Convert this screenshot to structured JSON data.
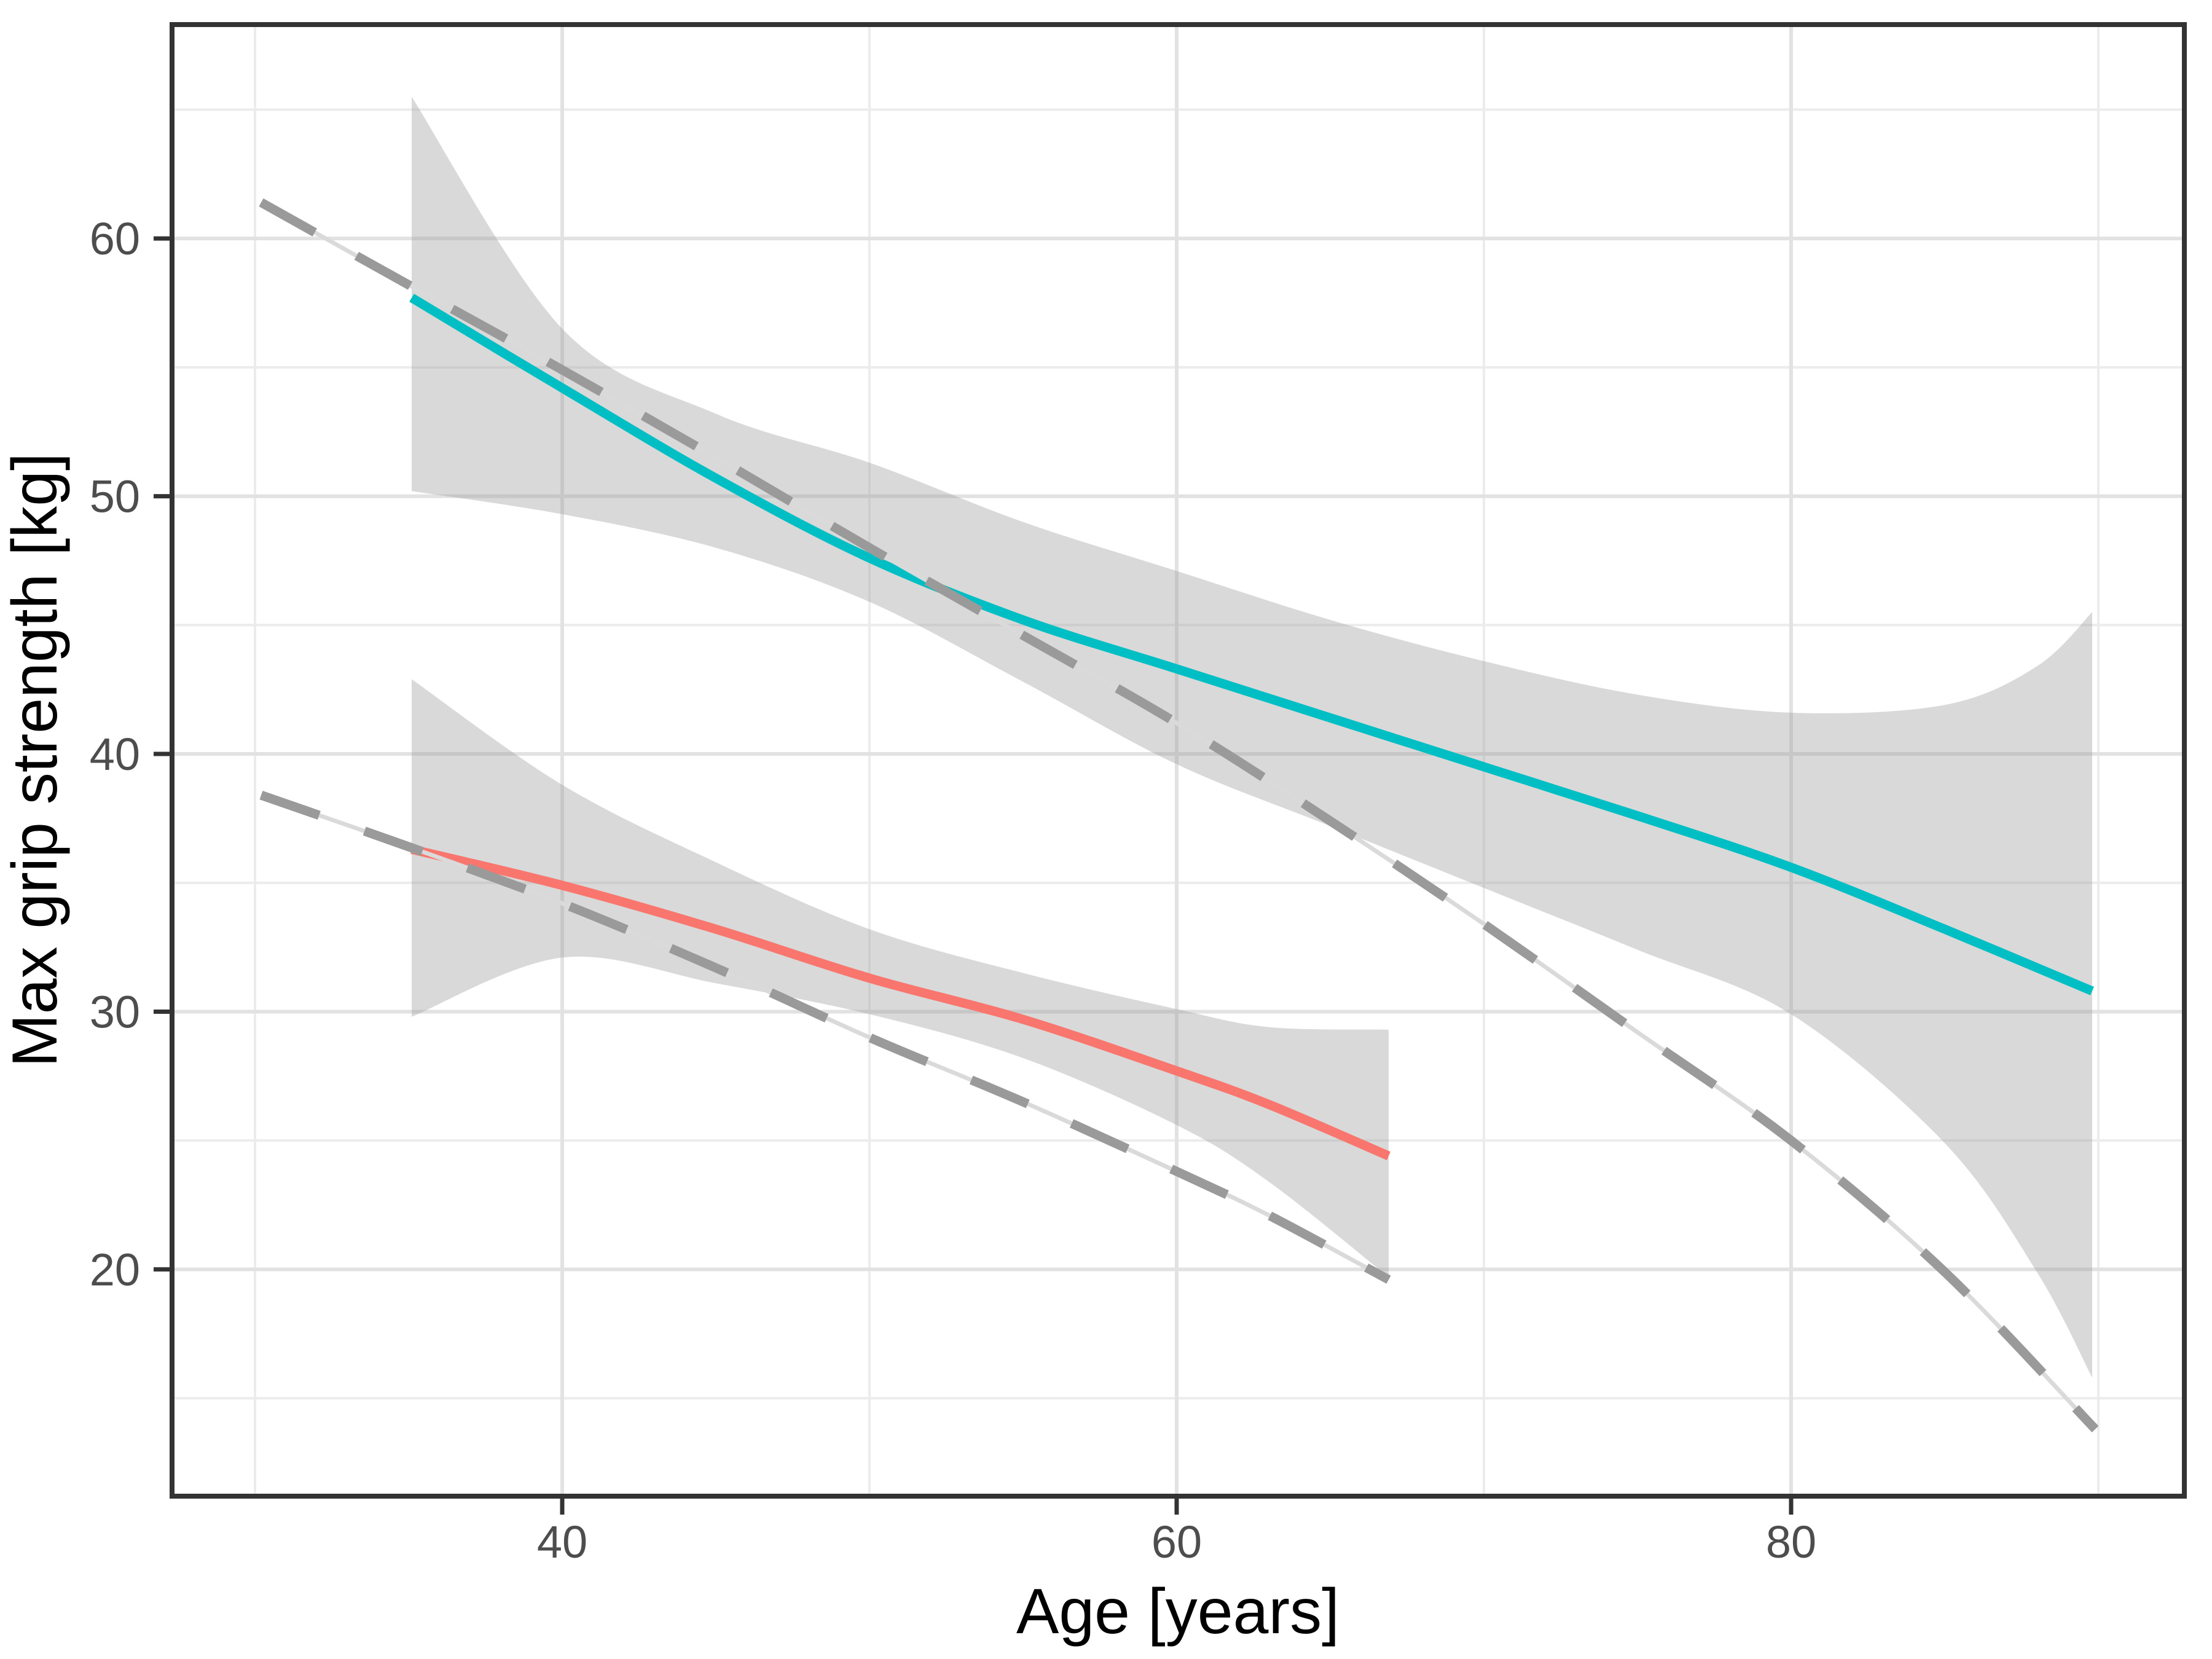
{
  "chart_data": {
    "type": "line",
    "title": "",
    "xlabel": "Age [years]",
    "ylabel": "Max grip strength [kg]",
    "xlim": [
      27.3,
      92.8
    ],
    "ylim": [
      11.2,
      68.3
    ],
    "x_ticks": [
      40,
      60,
      80
    ],
    "y_ticks": [
      60,
      50,
      40,
      30,
      20
    ],
    "x_minor_ticks": [
      30,
      50,
      70,
      90
    ],
    "y_minor_ticks": [
      65,
      55,
      45,
      35,
      25,
      15
    ],
    "grid": true,
    "legend_position": "none",
    "series": [
      {
        "name": "smooth-upper-teal",
        "kind": "smooth",
        "color": "#00BFC4",
        "width": 15,
        "points": [
          [
            35.1,
            57.7
          ],
          [
            40,
            54.2
          ],
          [
            45,
            50.7
          ],
          [
            50,
            47.6
          ],
          [
            55,
            45.2
          ],
          [
            60,
            43.3
          ],
          [
            65,
            41.4
          ],
          [
            70,
            39.5
          ],
          [
            75,
            37.6
          ],
          [
            80,
            35.6
          ],
          [
            85,
            33.2
          ],
          [
            89.8,
            30.8
          ]
        ]
      },
      {
        "name": "smooth-lower-red",
        "kind": "smooth",
        "color": "#F8766D",
        "width": 15,
        "points": [
          [
            35.1,
            36.3
          ],
          [
            40,
            34.9
          ],
          [
            45,
            33.2
          ],
          [
            50,
            31.3
          ],
          [
            55,
            29.7
          ],
          [
            60,
            27.7
          ],
          [
            63,
            26.4
          ],
          [
            66.9,
            24.4
          ]
        ]
      },
      {
        "name": "reference-upper-dashed",
        "kind": "dashed",
        "color": "#9A9A9A",
        "underlay_color": "#DADADA",
        "width": 15,
        "underlay_width": 7,
        "dash": [
          100,
          78
        ],
        "points": [
          [
            30.2,
            61.4
          ],
          [
            35,
            58.2
          ],
          [
            40,
            54.9
          ],
          [
            45,
            51.5
          ],
          [
            50,
            48.0
          ],
          [
            55,
            44.6
          ],
          [
            60,
            41.2
          ],
          [
            65,
            37.4
          ],
          [
            70,
            33.4
          ],
          [
            75,
            29.2
          ],
          [
            80,
            25.0
          ],
          [
            85,
            19.9
          ],
          [
            89.9,
            13.8
          ]
        ]
      },
      {
        "name": "reference-lower-dashed",
        "kind": "dashed",
        "color": "#9A9A9A",
        "underlay_color": "#DADADA",
        "width": 15,
        "underlay_width": 7,
        "dash": [
          100,
          78
        ],
        "points": [
          [
            30.2,
            38.4
          ],
          [
            35,
            36.4
          ],
          [
            40,
            34.2
          ],
          [
            45,
            31.7
          ],
          [
            50,
            29.0
          ],
          [
            55,
            26.5
          ],
          [
            60,
            23.8
          ],
          [
            63,
            22.1
          ],
          [
            66.9,
            19.6
          ]
        ]
      }
    ],
    "ribbons": [
      {
        "name": "confidence-band-upper",
        "fill": "rgba(155,155,155,0.38)",
        "points": [
          {
            "x": 35.1,
            "top": 65.5,
            "bottom": 50.2
          },
          {
            "x": 40,
            "top": 56.5,
            "bottom": 49.3
          },
          {
            "x": 45,
            "top": 53.2,
            "bottom": 48.0
          },
          {
            "x": 50,
            "top": 51.3,
            "bottom": 45.9
          },
          {
            "x": 55,
            "top": 49.0,
            "bottom": 42.8
          },
          {
            "x": 60,
            "top": 47.1,
            "bottom": 39.6
          },
          {
            "x": 65,
            "top": 45.2,
            "bottom": 37.2
          },
          {
            "x": 70,
            "top": 43.6,
            "bottom": 34.8
          },
          {
            "x": 75,
            "top": 42.3,
            "bottom": 32.4
          },
          {
            "x": 80,
            "top": 41.6,
            "bottom": 29.9
          },
          {
            "x": 85,
            "top": 41.9,
            "bottom": 24.9
          },
          {
            "x": 88,
            "top": 43.4,
            "bottom": 19.9
          },
          {
            "x": 89.8,
            "top": 45.5,
            "bottom": 15.8
          }
        ]
      },
      {
        "name": "confidence-band-lower",
        "fill": "rgba(155,155,155,0.38)",
        "points": [
          {
            "x": 35.1,
            "top": 42.9,
            "bottom": 29.8
          },
          {
            "x": 40,
            "top": 38.8,
            "bottom": 32.1
          },
          {
            "x": 45,
            "top": 35.8,
            "bottom": 31.1
          },
          {
            "x": 50,
            "top": 33.2,
            "bottom": 29.9
          },
          {
            "x": 55,
            "top": 31.5,
            "bottom": 28.2
          },
          {
            "x": 60,
            "top": 30.1,
            "bottom": 25.6
          },
          {
            "x": 63,
            "top": 29.4,
            "bottom": 23.4
          },
          {
            "x": 66.9,
            "top": 29.3,
            "bottom": 19.7
          }
        ]
      }
    ],
    "style": {
      "panel_background": "#FFFFFF",
      "border_color": "#333333",
      "border_width": 8,
      "grid_major_color": "#E2E2E2",
      "grid_major_width": 6,
      "grid_minor_color": "#ECECEC",
      "grid_minor_width": 4,
      "tick_color": "#333333",
      "tick_width": 7,
      "tick_length": 30,
      "tick_label_color": "#4D4D4D"
    }
  }
}
